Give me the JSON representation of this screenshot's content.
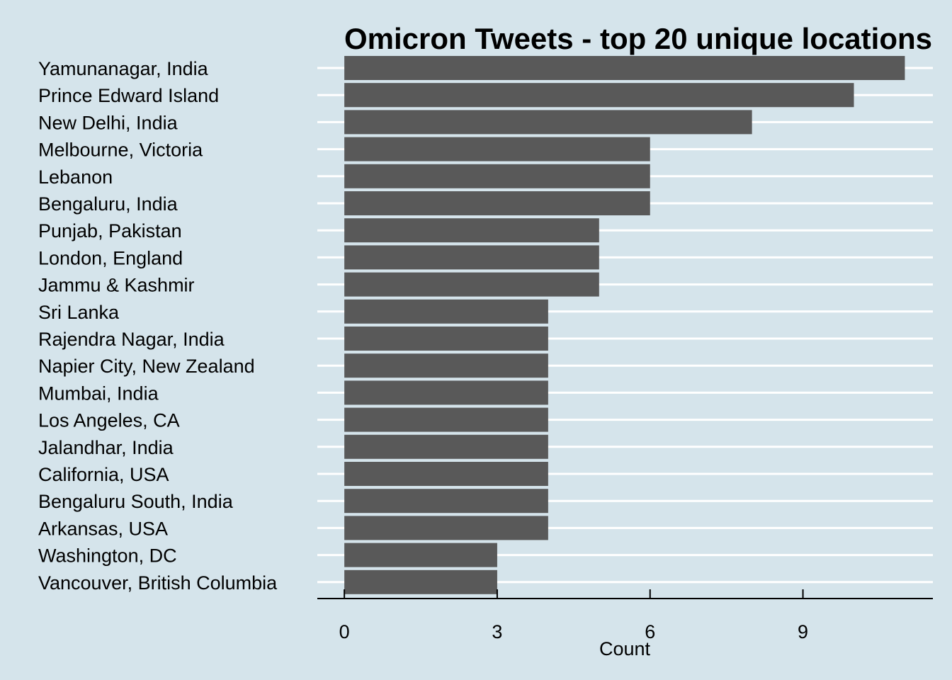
{
  "chart_data": {
    "type": "bar",
    "orientation": "horizontal",
    "title": "Omicron Tweets - top 20 unique locations",
    "xlabel": "Count",
    "ylabel": "",
    "categories": [
      "Yamunanagar, India",
      "Prince Edward Island",
      "New Delhi, India",
      "Melbourne, Victoria",
      "Lebanon",
      "Bengaluru, India",
      "Punjab, Pakistan",
      "London, England",
      "Jammu & Kashmir",
      "Sri Lanka",
      "Rajendra Nagar, India",
      "Napier City, New Zealand",
      "Mumbai, India",
      "Los Angeles, CA",
      "Jalandhar, India",
      "California, USA",
      "Bengaluru South, India",
      "Arkansas, USA",
      "Washington, DC",
      "Vancouver, British Columbia"
    ],
    "values": [
      11,
      10,
      8,
      6,
      6,
      6,
      5,
      5,
      5,
      4,
      4,
      4,
      4,
      4,
      4,
      4,
      4,
      4,
      3,
      3
    ],
    "xticks": [
      0,
      3,
      6,
      9
    ],
    "xlim": [
      -0.53,
      11.55
    ],
    "grid": "horizontal major lines",
    "legend": "none",
    "colors": {
      "background": "#d5e4eb",
      "bar": "#595959",
      "grid": "#ffffff",
      "axis": "#000000"
    }
  }
}
